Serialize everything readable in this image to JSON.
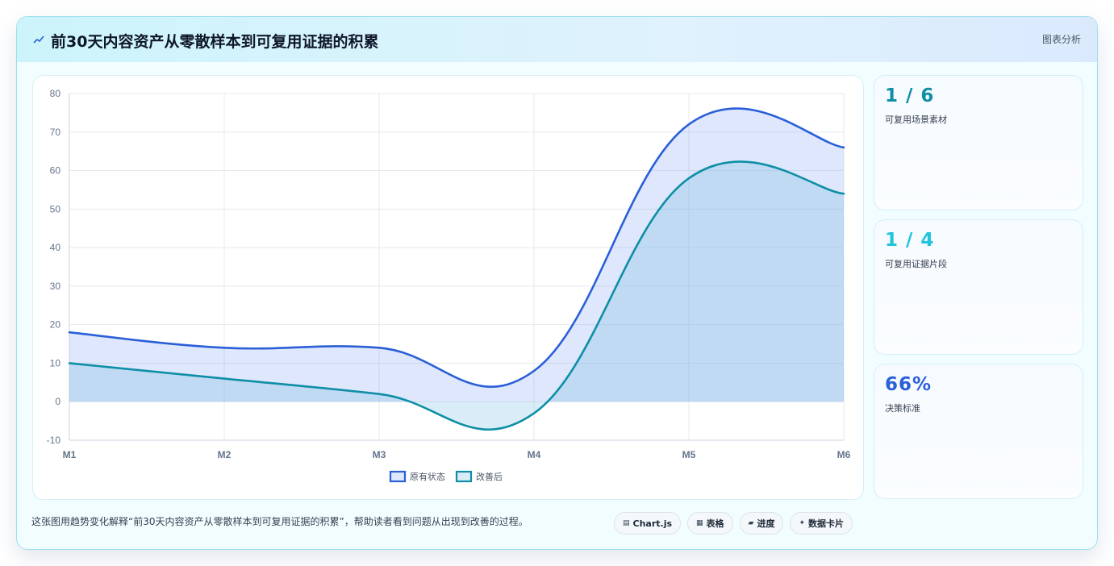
{
  "header": {
    "title": "前30天内容资产从零散样本到可复用证据的积累",
    "right_label": "图表分析"
  },
  "stats": [
    {
      "value": "1 / 6",
      "label": "可复用场景素材",
      "color": "#0e8fa6"
    },
    {
      "value": "1 / 4",
      "label": "可复用证据片段",
      "color": "#22c3dd"
    },
    {
      "value": "66%",
      "label": "决策标准",
      "color": "#2a5fd8"
    }
  ],
  "footer": {
    "description": "这张图用趋势变化解释“前30天内容资产从零散样本到可复用证据的积累”，帮助读者看到问题从出现到改善的过程。",
    "tags": [
      {
        "icon": "chart-icon",
        "glyph": "▤",
        "label": "Chart.js"
      },
      {
        "icon": "table-icon",
        "glyph": "▦",
        "label": "表格"
      },
      {
        "icon": "progress-icon",
        "glyph": "▰",
        "label": "进度"
      },
      {
        "icon": "sparkle-icon",
        "glyph": "✦",
        "label": "数据卡片"
      }
    ]
  },
  "chart_data": {
    "type": "area",
    "categories": [
      "M1",
      "M2",
      "M3",
      "M4",
      "M5",
      "M6"
    ],
    "ylim": [
      -10,
      80
    ],
    "yticks": [
      80,
      70,
      60,
      50,
      40,
      30,
      20,
      10,
      0,
      -10
    ],
    "grid": true,
    "legend": "bottom",
    "series": [
      {
        "name": "原有状态",
        "values": [
          18,
          14,
          14,
          8,
          72,
          66
        ],
        "color": "#2a5fd8",
        "fill": "rgba(137,168,240,0.28)"
      },
      {
        "name": "改善后",
        "values": [
          10,
          6,
          2,
          -3,
          58,
          54
        ],
        "color": "#0e8fa6",
        "fill": "rgba(120,185,225,0.28)"
      }
    ]
  }
}
